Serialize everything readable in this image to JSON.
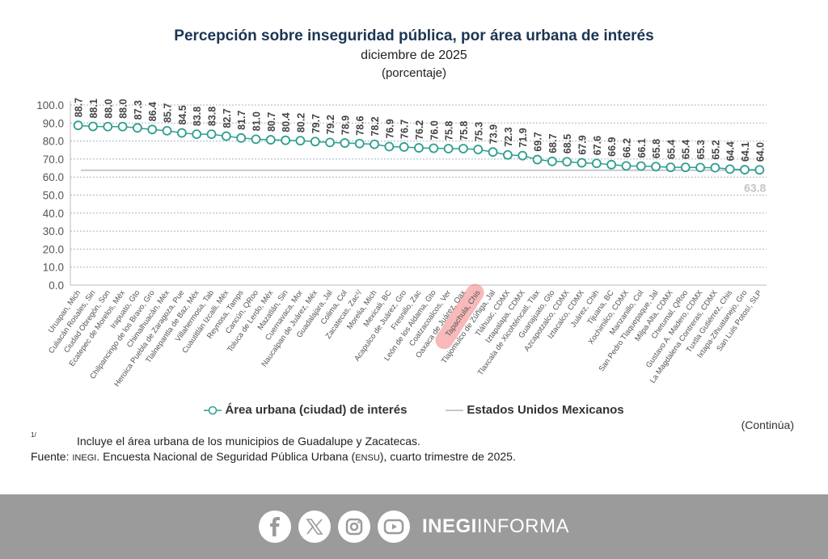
{
  "chart_data": {
    "type": "line",
    "title": "Percepción sobre inseguridad pública, por área urbana de interés",
    "subtitle": "diciembre de 2025",
    "unit": "(porcentaje)",
    "xlabel": "",
    "ylabel": "",
    "ylim": [
      0,
      100
    ],
    "yticks": [
      "100.0",
      "90.0",
      "80.0",
      "70.0",
      "60.0",
      "50.0",
      "40.0",
      "30.0",
      "20.0",
      "10.0",
      "0.0"
    ],
    "grid": true,
    "categories": [
      "Uruapan, Mich",
      "Culiacán Rosales, Sin",
      "Ciudad Obregón, Son",
      "Ecatepec de Morelos, Méx",
      "Irapuato, Gto",
      "Chilpancingo de los Bravo, Gro",
      "Chimalhuacán, Méx",
      "Heroica Puebla de Zaragoza, Pue",
      "Tlalnepantla de Baz, Méx",
      "Villahermosa, Tab",
      "Cuautitlán Izcalli, Méx",
      "Reynosa, Tamps",
      "Cancún, QRoo",
      "Toluca de Lerdo, Méx",
      "Mazatlán, Sin",
      "Cuernavaca, Mor",
      "Naucalpan de Juárez, Méx",
      "Guadalajara, Jal",
      "Colima, Col",
      "Zacatecas, Zac¹/",
      "Morelia, Mich",
      "Mexicali, BC",
      "Acapulco de Juárez, Gro",
      "Fresnillo, Zac",
      "León de los Aldama, Gto",
      "Coatzacoalcos, Ver",
      "Oaxaca de Juárez, Oax",
      "Tapachula, Chis",
      "Tlajomulco de Zúñiga, Jal",
      "Tláhuac, CDMX",
      "Iztapalapa, CDMX",
      "Tlaxcala de Xicohténcatl, Tlax",
      "Guanajuato, Gto",
      "Azcapotzalco, CDMX",
      "Iztacalco, CDMX",
      "Juárez, Chih",
      "Tijuana, BC",
      "Xochimilco, CDMX",
      "Manzanillo, Col",
      "San Pedro Tlaquepaque, Jal",
      "Milpa Alta, CDMX",
      "Chetumal, QRoo",
      "Gustavo A. Madero, CDMX",
      "La Magdalena Contreras, CDMX",
      "Tuxtla Gutiérrez, Chis",
      "Ixtapa-Zihuatanejo, Gro",
      "San Luis Potosí, SLP"
    ],
    "series": [
      {
        "name": "Área urbana (ciudad) de interés",
        "color": "#2e9e8f",
        "marker": "hollow-circle",
        "values": [
          88.7,
          88.1,
          88.0,
          88.0,
          87.3,
          86.4,
          85.7,
          84.5,
          83.8,
          83.8,
          82.7,
          81.7,
          81.0,
          80.7,
          80.4,
          80.2,
          79.7,
          79.2,
          78.9,
          78.6,
          78.2,
          76.9,
          76.7,
          76.2,
          76.0,
          75.8,
          75.8,
          75.3,
          73.9,
          72.3,
          71.9,
          69.7,
          68.7,
          68.5,
          67.9,
          67.6,
          66.9,
          66.2,
          66.1,
          65.8,
          65.4,
          65.4,
          65.3,
          65.2,
          64.4,
          64.1,
          64.0
        ],
        "labels": [
          "88.7",
          "88.1",
          "88.0",
          "88.0",
          "87.3",
          "86.4",
          "85.7",
          "84.5",
          "83.8",
          "83.8",
          "82.7",
          "81.7",
          "81.0",
          "80.7",
          "80.4",
          "80.2",
          "79.7",
          "79.2",
          "78.9",
          "78.6",
          "78.2",
          "76.9",
          "76.7",
          "76.2",
          "76.0",
          "75.8",
          "75.8",
          "75.3",
          "73.9",
          "72.3",
          "71.9",
          "69.7",
          "68.7",
          "68.5",
          "67.9",
          "67.6",
          "66.9",
          "66.2",
          "66.1",
          "65.8",
          "65.4",
          "65.4",
          "65.3",
          "65.2",
          "64.4",
          "64.1",
          "64.0"
        ]
      },
      {
        "name": "Estados Unidos Mexicanos",
        "color": "#c8c8c8",
        "value": 63.8,
        "label": "63.8"
      }
    ],
    "highlight": {
      "category": "Tapachula, Chis",
      "color": "#f08080"
    },
    "legend_position": "bottom"
  },
  "legend": {
    "series1": "Área urbana (ciudad) de interés",
    "series2": "Estados Unidos Mexicanos"
  },
  "continua": "(Continúa)",
  "note": {
    "mark": "1/",
    "text": "Incluye el área urbana de los municipios de Guadalupe y Zacatecas."
  },
  "source": {
    "prefix": "Fuente: ",
    "org": "INEGI",
    "mid": ". Encuesta Nacional de Seguridad Pública Urbana (",
    "abbr": "ENSU",
    "end": "), cuarto trimestre de 2025."
  },
  "footer": {
    "icons": [
      "facebook-icon",
      "x-icon",
      "instagram-icon",
      "youtube-icon"
    ],
    "brand_bold": "INEGI",
    "brand_light": "INFORMA"
  }
}
